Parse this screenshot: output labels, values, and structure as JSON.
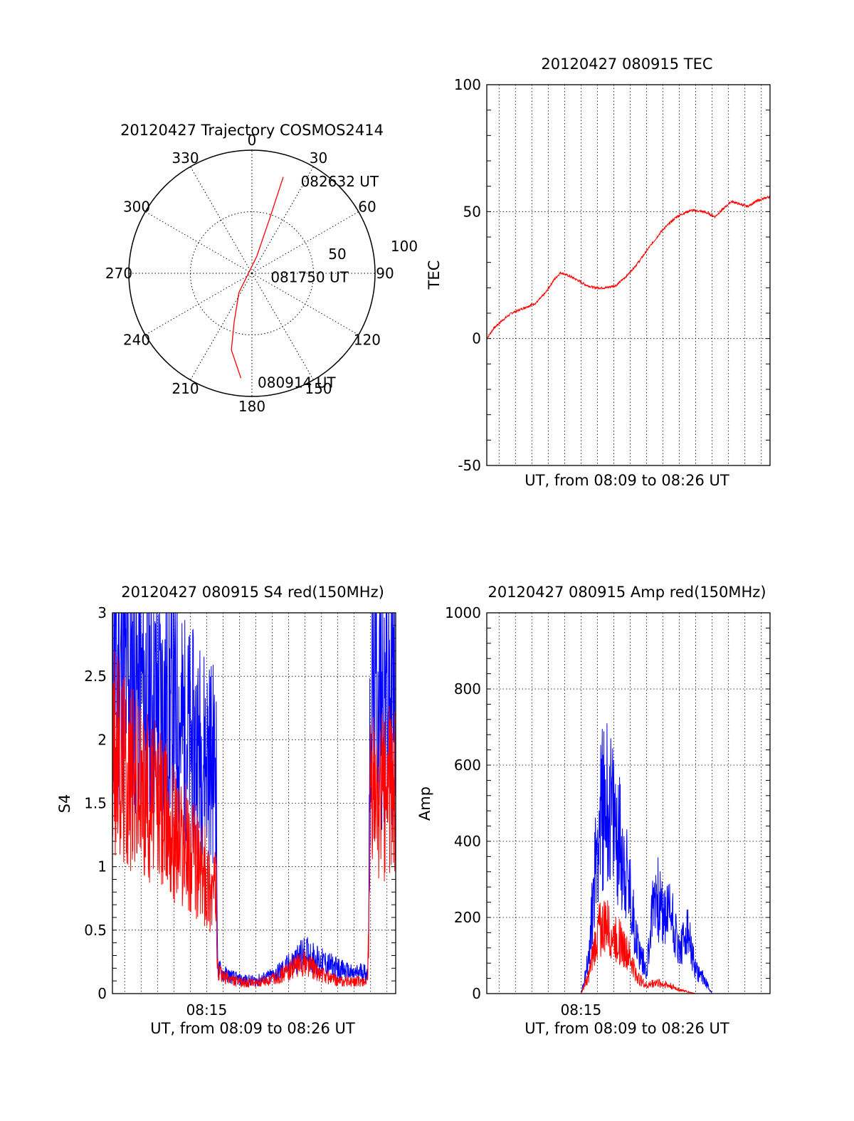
{
  "colors": {
    "red": "#ff0000",
    "blue": "#0000ff",
    "axis": "#000000",
    "grid": "#000000"
  },
  "chart_data": [
    {
      "id": "trajectory",
      "type": "polar",
      "title": "20120427 Trajectory COSMOS2414",
      "azimuth_labels": [
        "0",
        "30",
        "60",
        "90",
        "120",
        "150",
        "180",
        "210",
        "240",
        "270",
        "300",
        "330"
      ],
      "radial_ticks": [
        "50",
        "100"
      ],
      "grid": true,
      "track": {
        "color": "red",
        "points": [
          {
            "az": 186,
            "el": 13
          },
          {
            "az": 195,
            "el": 32
          },
          {
            "az": 200,
            "el": 52
          },
          {
            "az": 214,
            "el": 73
          },
          {
            "az": 16,
            "el": 77
          },
          {
            "az": 18,
            "el": 46
          },
          {
            "az": 18,
            "el": 16
          }
        ]
      },
      "annotations": [
        {
          "text": "080914 UT",
          "az": 177,
          "el": 10
        },
        {
          "text": "081750 UT",
          "az": 102,
          "el": 76
        },
        {
          "text": "082632 UT",
          "az": 28,
          "el": 14
        }
      ]
    },
    {
      "id": "tec",
      "type": "line",
      "title": "20120427 080915 TEC",
      "xlabel": "UT, from 08:09 to 08:26 UT",
      "ylabel": "TEC",
      "ylim": [
        -50,
        100
      ],
      "xlim": [
        "08:09:15",
        "08:26:32"
      ],
      "yticks": [
        "-50",
        "0",
        "50",
        "100"
      ],
      "grid": true,
      "series": [
        {
          "color": "red",
          "x": [
            "08:09:15",
            "08:09:40",
            "08:10:10",
            "08:10:45",
            "08:11:30",
            "08:12:15",
            "08:12:50",
            "08:13:20",
            "08:13:45",
            "08:14:30",
            "08:15:20",
            "08:15:50",
            "08:16:30",
            "08:17:10",
            "08:17:50",
            "08:18:30",
            "08:19:10",
            "08:20:00",
            "08:20:50",
            "08:21:40",
            "08:22:30",
            "08:23:10",
            "08:23:40",
            "08:24:10",
            "08:24:40",
            "08:25:10",
            "08:25:40",
            "08:26:32"
          ],
          "values": [
            0,
            4,
            7,
            10,
            12,
            14,
            18,
            23,
            26,
            24,
            21,
            20,
            20,
            21,
            25,
            30,
            36,
            43,
            48,
            50.5,
            50,
            48,
            51,
            54,
            53,
            52,
            54,
            56
          ]
        }
      ]
    },
    {
      "id": "s4",
      "type": "line",
      "title": "20120427 080915 S4 red(150MHz)",
      "xlabel": "UT, from 08:09 to 08:26 UT",
      "ylabel": "S4",
      "ylim": [
        0,
        3
      ],
      "xlim": [
        "08:09:15",
        "08:26:32"
      ],
      "yticks": [
        "0",
        "0.5",
        "1",
        "1.5",
        "2",
        "2.5",
        "3"
      ],
      "xticks": [
        "08:15"
      ],
      "grid": true,
      "series": [
        {
          "color": "blue",
          "x": [
            "08:09:15",
            "08:10:00",
            "08:11:00",
            "08:12:00",
            "08:13:00",
            "08:14:00",
            "08:15:00",
            "08:15:35",
            "08:15:40",
            "08:16:00",
            "08:17:00",
            "08:18:00",
            "08:19:00",
            "08:20:00",
            "08:21:00",
            "08:22:00",
            "08:23:00",
            "08:24:00",
            "08:24:30",
            "08:24:50",
            "08:25:00",
            "08:26:32"
          ],
          "values": [
            2.6,
            2.5,
            2.4,
            2.3,
            2.2,
            2.0,
            1.9,
            1.8,
            0.2,
            0.16,
            0.11,
            0.1,
            0.14,
            0.22,
            0.32,
            0.25,
            0.2,
            0.15,
            0.18,
            0.15,
            2.3,
            2.4
          ]
        },
        {
          "color": "red",
          "x": [
            "08:09:15",
            "08:10:00",
            "08:11:00",
            "08:12:00",
            "08:13:00",
            "08:14:00",
            "08:15:00",
            "08:15:35",
            "08:15:40",
            "08:16:00",
            "08:17:00",
            "08:18:00",
            "08:19:00",
            "08:20:00",
            "08:21:00",
            "08:22:00",
            "08:23:00",
            "08:24:00",
            "08:24:30",
            "08:24:50",
            "08:25:00",
            "08:26:32"
          ],
          "values": [
            1.9,
            1.8,
            1.6,
            1.5,
            1.3,
            1.1,
            0.9,
            0.8,
            0.17,
            0.13,
            0.09,
            0.08,
            0.11,
            0.18,
            0.25,
            0.15,
            0.1,
            0.09,
            0.1,
            0.09,
            1.5,
            1.6
          ]
        }
      ]
    },
    {
      "id": "amp",
      "type": "line",
      "title": "20120427 080915 Amp red(150MHz)",
      "xlabel": "UT, from 08:09 to 08:26 UT",
      "ylabel": "Amp",
      "ylim": [
        0,
        1000
      ],
      "xlim": [
        "08:09:15",
        "08:26:32"
      ],
      "yticks": [
        "0",
        "200",
        "400",
        "600",
        "800",
        "1000"
      ],
      "xticks": [
        "08:15"
      ],
      "grid": true,
      "series": [
        {
          "color": "blue",
          "x": [
            "08:09:15",
            "08:14:30",
            "08:15:00",
            "08:15:30",
            "08:16:00",
            "08:16:30",
            "08:17:00",
            "08:17:30",
            "08:18:00",
            "08:18:30",
            "08:19:00",
            "08:19:30",
            "08:20:00",
            "08:20:30",
            "08:21:00",
            "08:21:30",
            "08:22:00",
            "08:22:30",
            "08:23:00",
            "08:26:32"
          ],
          "values": [
            0,
            0,
            0,
            100,
            420,
            520,
            450,
            380,
            250,
            120,
            60,
            280,
            200,
            220,
            110,
            160,
            60,
            40,
            0,
            0
          ]
        },
        {
          "color": "red",
          "x": [
            "08:09:15",
            "08:14:30",
            "08:15:00",
            "08:15:30",
            "08:16:00",
            "08:16:30",
            "08:17:00",
            "08:17:30",
            "08:18:00",
            "08:18:30",
            "08:19:00",
            "08:19:30",
            "08:20:00",
            "08:20:30",
            "08:21:00",
            "08:21:30",
            "08:22:00",
            "08:22:30",
            "08:23:00",
            "08:26:32"
          ],
          "values": [
            0,
            0,
            0,
            50,
            160,
            180,
            150,
            130,
            90,
            40,
            20,
            30,
            25,
            20,
            10,
            5,
            0,
            0,
            0,
            0
          ]
        }
      ]
    }
  ]
}
